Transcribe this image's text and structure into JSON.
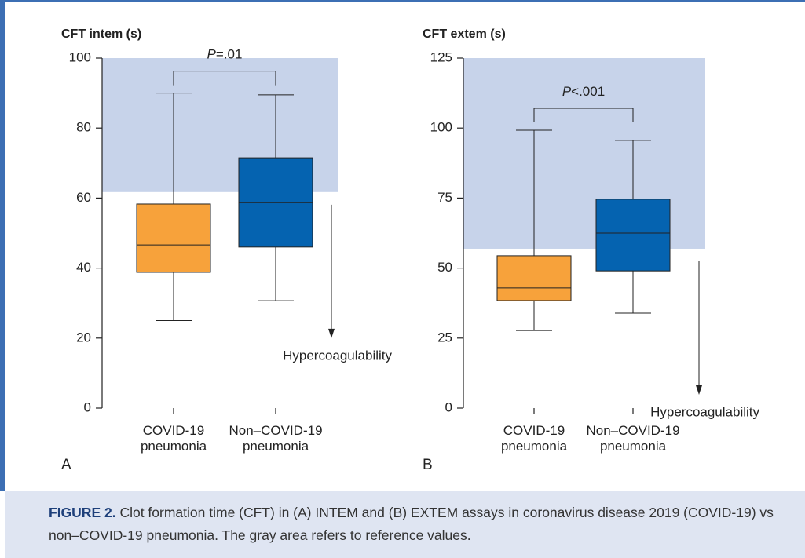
{
  "chart_data": [
    {
      "type": "box",
      "panel": "A",
      "ylabel": "CFT intem (s)",
      "categories": [
        "COVID-19 pneumonia",
        "Non–COVID-19 pneumonia"
      ],
      "boxes": [
        {
          "low": 25,
          "q1": 38.8,
          "median": 46.6,
          "q3": 58.3,
          "high": 90
        },
        {
          "low": 30.7,
          "q1": 46,
          "median": 58.7,
          "q3": 71.5,
          "high": 89.5
        }
      ],
      "colors": [
        "#f7a23b",
        "#0563b0"
      ],
      "ylim": [
        0,
        100
      ],
      "yticks": [
        0,
        20,
        40,
        60,
        80,
        100
      ],
      "reference_range": [
        61.7,
        100
      ],
      "reference_color": "#c7d3ea",
      "p_value": "P=.01",
      "note": "Hypercoagulability"
    },
    {
      "type": "box",
      "panel": "B",
      "ylabel": "CFT extem (s)",
      "categories": [
        "COVID-19 pneumonia",
        "Non–COVID-19 pneumonia"
      ],
      "boxes": [
        {
          "low": 27.7,
          "q1": 38.4,
          "median": 42.9,
          "q3": 54.4,
          "high": 99.2
        },
        {
          "low": 33.9,
          "q1": 49,
          "median": 62.5,
          "q3": 74.6,
          "high": 95.6
        }
      ],
      "colors": [
        "#f7a23b",
        "#0563b0"
      ],
      "ylim": [
        0,
        125
      ],
      "yticks": [
        0,
        25,
        50,
        75,
        100,
        125
      ],
      "reference_range": [
        56.9,
        125
      ],
      "reference_color": "#c7d3ea",
      "p_value": "P<.001",
      "note": "Hypercoagulability"
    }
  ],
  "caption": {
    "label": "FIGURE 2.",
    "text": "Clot formation time (CFT) in (A) INTEM and (B) EXTEM assays in coronavirus disease 2019 (COVID-19) vs non–COVID-19 pneumonia. The gray area refers to reference values."
  }
}
